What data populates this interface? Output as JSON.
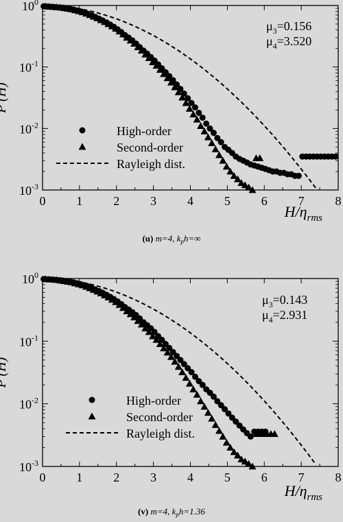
{
  "chart_data": [
    {
      "type": "scatter",
      "caption": {
        "tag": "(u)",
        "text": "m=4, k",
        "sub": "p",
        "tail": "h=∞"
      },
      "xlabel": {
        "main": "H/η",
        "sub": "rms"
      },
      "ylabel": "P (H)",
      "xlim": [
        0,
        8
      ],
      "ylim": [
        0.001,
        1
      ],
      "yscale": "log",
      "xticks": [
        "0",
        "1",
        "2",
        "3",
        "4",
        "5",
        "6",
        "7",
        "8"
      ],
      "yticks": [
        {
          "base": "10",
          "exp": "0",
          "value": 1
        },
        {
          "base": "10",
          "exp": "-1",
          "value": 0.1
        },
        {
          "base": "10",
          "exp": "-2",
          "value": 0.01
        },
        {
          "base": "10",
          "exp": "-3",
          "value": 0.001
        }
      ],
      "stats": [
        {
          "sym": "μ",
          "sub": "3",
          "val": "=0.156"
        },
        {
          "sym": "μ",
          "sub": "4",
          "val": "=3.520"
        }
      ],
      "legend": [
        "High-order",
        "Second-order",
        "Rayleigh dist."
      ],
      "series": [
        {
          "name": "High-order",
          "marker": "circle",
          "x": [
            0.03,
            0.13,
            0.23,
            0.33,
            0.43,
            0.53,
            0.63,
            0.73,
            0.83,
            0.93,
            1.03,
            1.13,
            1.23,
            1.33,
            1.43,
            1.53,
            1.63,
            1.73,
            1.83,
            1.93,
            2.03,
            2.13,
            2.23,
            2.33,
            2.43,
            2.53,
            2.63,
            2.73,
            2.83,
            2.93,
            3.03,
            3.13,
            3.23,
            3.33,
            3.43,
            3.53,
            3.63,
            3.73,
            3.83,
            3.93,
            4.03,
            4.13,
            4.23,
            4.33,
            4.43,
            4.53,
            4.63,
            4.73,
            4.83,
            4.93,
            5.03,
            5.13,
            5.23,
            5.33,
            5.43,
            5.53,
            5.63,
            5.73,
            5.83,
            5.93,
            6.03,
            6.13,
            6.23,
            6.33,
            6.43,
            6.53,
            6.63,
            6.73,
            6.83,
            6.93,
            7.03,
            7.13,
            7.23,
            7.33,
            7.43,
            7.53,
            7.63,
            7.73,
            7.83,
            7.93
          ],
          "y": [
            0.97,
            0.96,
            0.95,
            0.94,
            0.93,
            0.92,
            0.9,
            0.88,
            0.86,
            0.83,
            0.8,
            0.77,
            0.73,
            0.69,
            0.65,
            0.61,
            0.57,
            0.53,
            0.49,
            0.45,
            0.41,
            0.37,
            0.33,
            0.3,
            0.27,
            0.24,
            0.21,
            0.185,
            0.165,
            0.145,
            0.127,
            0.11,
            0.095,
            0.082,
            0.071,
            0.061,
            0.052,
            0.044,
            0.037,
            0.031,
            0.026,
            0.022,
            0.018,
            0.015,
            0.012,
            0.01,
            0.0085,
            0.007,
            0.006,
            0.005,
            0.0045,
            0.004,
            0.0035,
            0.0032,
            0.003,
            0.0028,
            0.0026,
            0.0025,
            0.0024,
            0.0023,
            0.0022,
            0.0021,
            0.002,
            0.002,
            0.0019,
            0.0019,
            0.0018,
            0.0018,
            0.0017,
            0.0017,
            0.0035,
            0.0035,
            0.0035,
            0.0035,
            0.0035,
            0.0035,
            0.0035,
            0.0035,
            0.0035,
            0.0035
          ]
        },
        {
          "name": "Second-order",
          "marker": "triangle",
          "x": [
            0.08,
            0.18,
            0.28,
            0.38,
            0.48,
            0.58,
            0.68,
            0.78,
            0.88,
            0.98,
            1.08,
            1.18,
            1.28,
            1.38,
            1.48,
            1.58,
            1.68,
            1.78,
            1.88,
            1.98,
            2.08,
            2.18,
            2.28,
            2.38,
            2.48,
            2.58,
            2.68,
            2.78,
            2.88,
            2.98,
            3.08,
            3.18,
            3.28,
            3.38,
            3.48,
            3.58,
            3.68,
            3.78,
            3.88,
            3.98,
            4.08,
            4.18,
            4.28,
            4.38,
            4.48,
            4.58,
            4.68,
            4.78,
            4.88,
            4.98,
            5.08,
            5.18,
            5.28,
            5.38,
            5.48,
            5.58,
            5.68,
            5.78,
            5.88
          ],
          "y": [
            0.97,
            0.96,
            0.95,
            0.94,
            0.93,
            0.91,
            0.89,
            0.87,
            0.84,
            0.81,
            0.78,
            0.74,
            0.7,
            0.66,
            0.62,
            0.58,
            0.54,
            0.5,
            0.46,
            0.42,
            0.38,
            0.34,
            0.3,
            0.27,
            0.24,
            0.21,
            0.185,
            0.16,
            0.14,
            0.12,
            0.105,
            0.09,
            0.077,
            0.066,
            0.056,
            0.047,
            0.039,
            0.032,
            0.026,
            0.021,
            0.017,
            0.014,
            0.011,
            0.009,
            0.0072,
            0.0058,
            0.0046,
            0.0037,
            0.003,
            0.0024,
            0.002,
            0.0017,
            0.0015,
            0.0013,
            0.0012,
            0.0011,
            0.001,
            0.0033,
            0.0033
          ]
        }
      ]
    },
    {
      "type": "scatter",
      "caption": {
        "tag": "(v)",
        "text": "m=4, k",
        "sub": "p",
        "tail": "h=1.36"
      },
      "xlabel": {
        "main": "H/η",
        "sub": "rms"
      },
      "ylabel": "P (H)",
      "xlim": [
        0,
        8
      ],
      "ylim": [
        0.001,
        1
      ],
      "yscale": "log",
      "xticks": [
        "0",
        "1",
        "2",
        "3",
        "4",
        "5",
        "6",
        "7",
        "8"
      ],
      "yticks": [
        {
          "base": "10",
          "exp": "0",
          "value": 1
        },
        {
          "base": "10",
          "exp": "-1",
          "value": 0.1
        },
        {
          "base": "10",
          "exp": "-2",
          "value": 0.01
        },
        {
          "base": "10",
          "exp": "-3",
          "value": 0.001
        }
      ],
      "stats": [
        {
          "sym": "μ",
          "sub": "3",
          "val": "=0.143"
        },
        {
          "sym": "μ",
          "sub": "4",
          "val": "=2.931"
        }
      ],
      "legend": [
        "High-order",
        "Second-order",
        "Rayleigh dist."
      ],
      "series": [
        {
          "name": "High-order",
          "marker": "circle",
          "x": [
            0.03,
            0.13,
            0.23,
            0.33,
            0.43,
            0.53,
            0.63,
            0.73,
            0.83,
            0.93,
            1.03,
            1.13,
            1.23,
            1.33,
            1.43,
            1.53,
            1.63,
            1.73,
            1.83,
            1.93,
            2.03,
            2.13,
            2.23,
            2.33,
            2.43,
            2.53,
            2.63,
            2.73,
            2.83,
            2.93,
            3.03,
            3.13,
            3.23,
            3.33,
            3.43,
            3.53,
            3.63,
            3.73,
            3.83,
            3.93,
            4.03,
            4.13,
            4.23,
            4.33,
            4.43,
            4.53,
            4.63,
            4.73,
            4.83,
            4.93,
            5.03,
            5.13,
            5.23,
            5.33,
            5.43,
            5.53,
            5.63,
            5.73,
            5.83,
            5.93,
            6.03
          ],
          "y": [
            0.98,
            0.97,
            0.96,
            0.95,
            0.94,
            0.93,
            0.91,
            0.89,
            0.87,
            0.84,
            0.81,
            0.78,
            0.75,
            0.71,
            0.67,
            0.63,
            0.59,
            0.55,
            0.51,
            0.47,
            0.43,
            0.39,
            0.35,
            0.32,
            0.29,
            0.26,
            0.23,
            0.2,
            0.18,
            0.16,
            0.14,
            0.12,
            0.105,
            0.09,
            0.078,
            0.067,
            0.058,
            0.05,
            0.043,
            0.037,
            0.032,
            0.027,
            0.023,
            0.02,
            0.017,
            0.015,
            0.013,
            0.011,
            0.0095,
            0.0082,
            0.007,
            0.006,
            0.0052,
            0.0045,
            0.0039,
            0.0034,
            0.003,
            0.0036,
            0.0036,
            0.0036,
            0.0036
          ]
        },
        {
          "name": "Second-order",
          "marker": "triangle",
          "x": [
            0.08,
            0.18,
            0.28,
            0.38,
            0.48,
            0.58,
            0.68,
            0.78,
            0.88,
            0.98,
            1.08,
            1.18,
            1.28,
            1.38,
            1.48,
            1.58,
            1.68,
            1.78,
            1.88,
            1.98,
            2.08,
            2.18,
            2.28,
            2.38,
            2.48,
            2.58,
            2.68,
            2.78,
            2.88,
            2.98,
            3.08,
            3.18,
            3.28,
            3.38,
            3.48,
            3.58,
            3.68,
            3.78,
            3.88,
            3.98,
            4.08,
            4.18,
            4.28,
            4.38,
            4.48,
            4.58,
            4.68,
            4.78,
            4.88,
            4.98,
            5.08,
            5.18,
            5.28,
            5.38,
            5.48,
            5.58,
            5.68,
            5.78,
            5.88,
            5.98,
            6.08,
            6.18,
            6.28
          ],
          "y": [
            0.98,
            0.97,
            0.96,
            0.95,
            0.93,
            0.91,
            0.89,
            0.87,
            0.84,
            0.81,
            0.78,
            0.74,
            0.7,
            0.66,
            0.62,
            0.58,
            0.54,
            0.5,
            0.46,
            0.42,
            0.38,
            0.34,
            0.3,
            0.27,
            0.24,
            0.21,
            0.185,
            0.16,
            0.14,
            0.12,
            0.105,
            0.09,
            0.077,
            0.066,
            0.056,
            0.047,
            0.039,
            0.032,
            0.026,
            0.021,
            0.017,
            0.014,
            0.011,
            0.009,
            0.0072,
            0.0058,
            0.0046,
            0.0037,
            0.003,
            0.0024,
            0.002,
            0.0017,
            0.0015,
            0.0013,
            0.0012,
            0.0011,
            0.001,
            0.0033,
            0.0033,
            0.0033,
            0.0033,
            0.0033,
            0.0033
          ]
        },
        {
          "name": "Rayleigh dist.",
          "marker": "dash",
          "x": [
            0.0,
            0.5,
            1.0,
            1.5,
            2.0,
            2.5,
            3.0,
            3.5,
            4.0,
            4.5,
            5.0,
            5.5,
            6.0,
            6.5,
            7.0,
            7.3
          ],
          "y": [
            1.0,
            0.969,
            0.882,
            0.755,
            0.607,
            0.458,
            0.325,
            0.216,
            0.135,
            0.0791,
            0.0439,
            0.0229,
            0.0111,
            0.0051,
            0.0022,
            0.0014
          ]
        }
      ]
    }
  ]
}
